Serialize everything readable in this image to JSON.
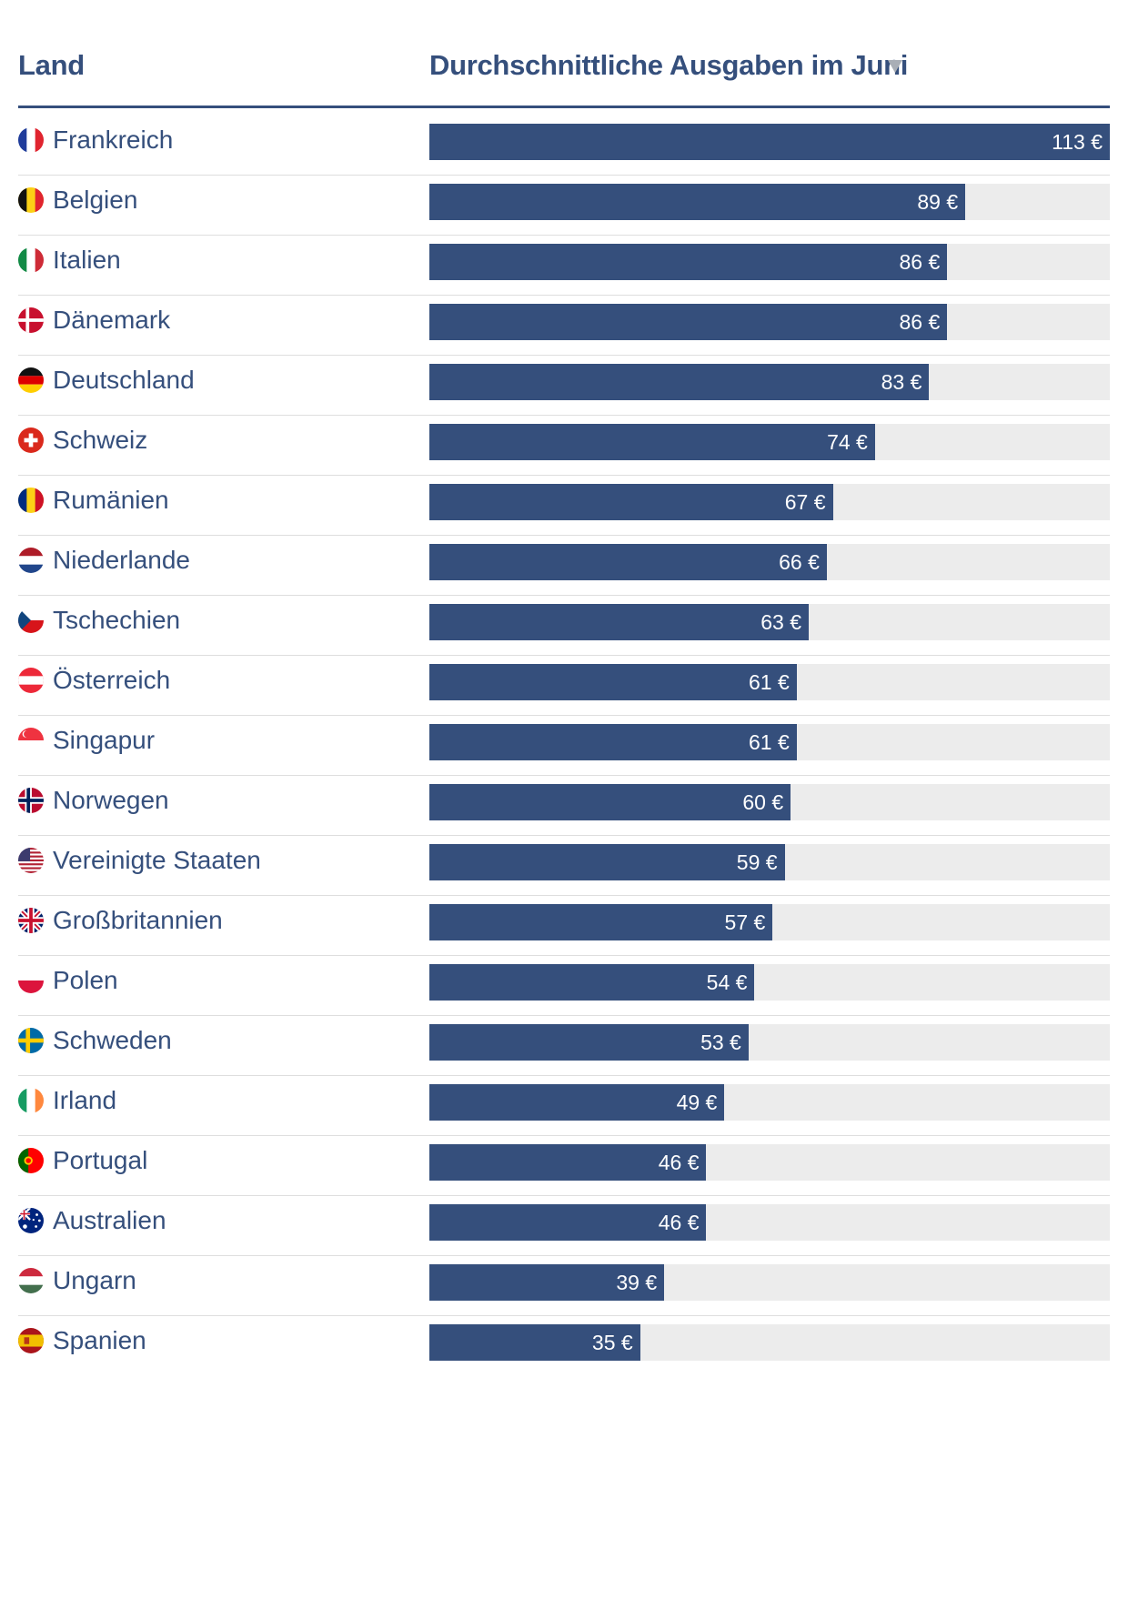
{
  "chart_data": {
    "type": "bar",
    "orientation": "horizontal",
    "column_headers": {
      "country": "Land",
      "value": "Durchschnittliche Ausgaben im Juni"
    },
    "sort": "descending",
    "max_value": 113,
    "unit": "€",
    "bar_color": "#354f7c",
    "track_color": "#ececec",
    "header_color": "#354f7c",
    "rows": [
      {
        "country": "Frankreich",
        "value": 113,
        "label": "113 €",
        "flag": "fr-flag-icon"
      },
      {
        "country": "Belgien",
        "value": 89,
        "label": "89 €",
        "flag": "be-flag-icon"
      },
      {
        "country": "Italien",
        "value": 86,
        "label": "86 €",
        "flag": "it-flag-icon"
      },
      {
        "country": "Dänemark",
        "value": 86,
        "label": "86 €",
        "flag": "dk-flag-icon"
      },
      {
        "country": "Deutschland",
        "value": 83,
        "label": "83 €",
        "flag": "de-flag-icon"
      },
      {
        "country": "Schweiz",
        "value": 74,
        "label": "74 €",
        "flag": "ch-flag-icon"
      },
      {
        "country": "Rumänien",
        "value": 67,
        "label": "67 €",
        "flag": "ro-flag-icon"
      },
      {
        "country": "Niederlande",
        "value": 66,
        "label": "66 €",
        "flag": "nl-flag-icon"
      },
      {
        "country": "Tschechien",
        "value": 63,
        "label": "63 €",
        "flag": "cz-flag-icon"
      },
      {
        "country": "Österreich",
        "value": 61,
        "label": "61 €",
        "flag": "at-flag-icon"
      },
      {
        "country": "Singapur",
        "value": 61,
        "label": "61 €",
        "flag": "sg-flag-icon"
      },
      {
        "country": "Norwegen",
        "value": 60,
        "label": "60 €",
        "flag": "no-flag-icon"
      },
      {
        "country": "Vereinigte Staaten",
        "value": 59,
        "label": "59 €",
        "flag": "us-flag-icon"
      },
      {
        "country": "Großbritannien",
        "value": 57,
        "label": "57 €",
        "flag": "gb-flag-icon"
      },
      {
        "country": "Polen",
        "value": 54,
        "label": "54 €",
        "flag": "pl-flag-icon"
      },
      {
        "country": "Schweden",
        "value": 53,
        "label": "53 €",
        "flag": "se-flag-icon"
      },
      {
        "country": "Irland",
        "value": 49,
        "label": "49 €",
        "flag": "ie-flag-icon"
      },
      {
        "country": "Portugal",
        "value": 46,
        "label": "46 €",
        "flag": "pt-flag-icon"
      },
      {
        "country": "Australien",
        "value": 46,
        "label": "46 €",
        "flag": "au-flag-icon"
      },
      {
        "country": "Ungarn",
        "value": 39,
        "label": "39 €",
        "flag": "hu-flag-icon"
      },
      {
        "country": "Spanien",
        "value": 35,
        "label": "35 €",
        "flag": "es-flag-icon"
      }
    ]
  },
  "sort_icon": "sort-descending-icon"
}
